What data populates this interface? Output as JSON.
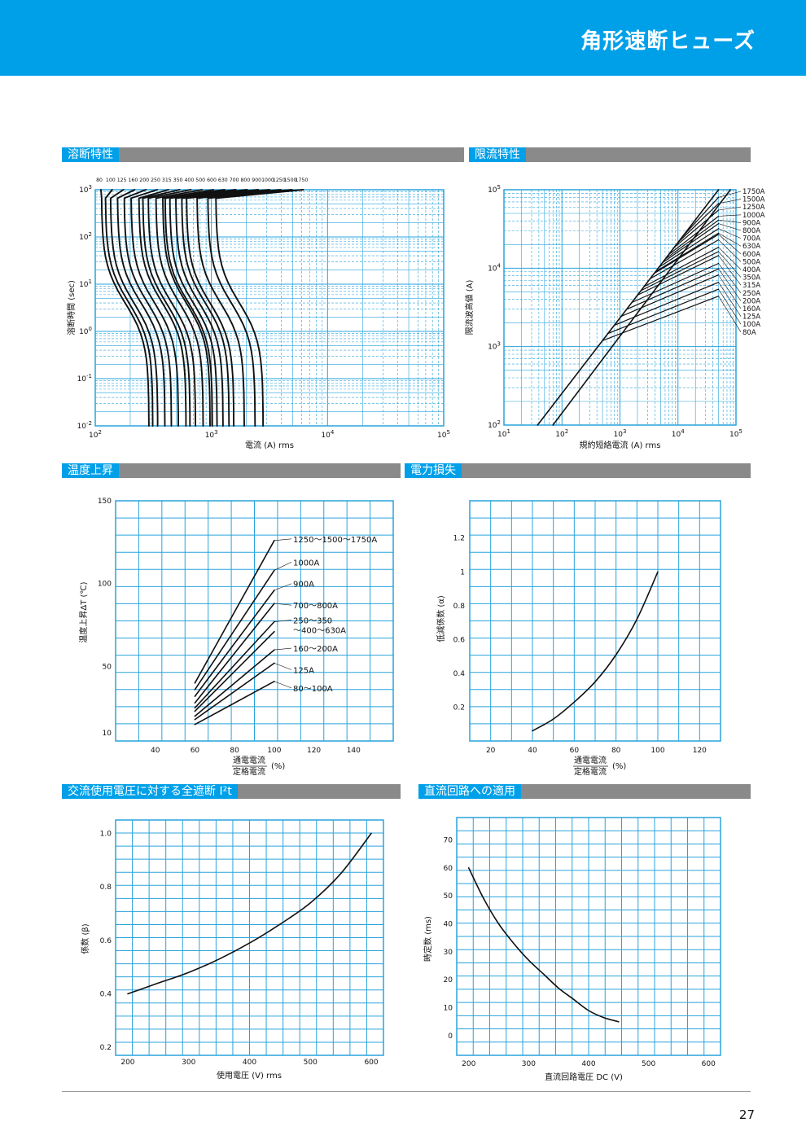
{
  "header": {
    "title": "角形速断ヒューズ"
  },
  "page_number": "27",
  "sections": {
    "melting": "溶断特性",
    "limiting": "限流特性",
    "temperature": "温度上昇",
    "power_loss": "電力損失",
    "i2t": "交流使用電圧に対する全遮断 I²t",
    "dc": "直流回路への適用"
  },
  "colors": {
    "accent": "#00a0e9",
    "grid": "#29a3dc",
    "bar": "#8a8a8a",
    "curve": "#111111"
  },
  "chart_data": [
    {
      "id": "melting",
      "type": "line",
      "xscale": "log",
      "yscale": "log",
      "xlim": [
        100,
        100000
      ],
      "ylim": [
        0.01,
        1000
      ],
      "x_ticks": [
        {
          "v": 100,
          "base": "10",
          "exp": "2"
        },
        {
          "v": 1000,
          "base": "10",
          "exp": "3"
        },
        {
          "v": 10000,
          "base": "10",
          "exp": "4"
        },
        {
          "v": 100000,
          "base": "10",
          "exp": "5"
        }
      ],
      "y_ticks": [
        {
          "v": 0.01,
          "base": "10",
          "exp": "-2"
        },
        {
          "v": 0.1,
          "base": "10",
          "exp": "-1"
        },
        {
          "v": 1,
          "base": "10",
          "exp": "0"
        },
        {
          "v": 10,
          "base": "10",
          "exp": "1"
        },
        {
          "v": 100,
          "base": "10",
          "exp": "2"
        },
        {
          "v": 1000,
          "base": "10",
          "exp": "3"
        }
      ],
      "xlabel": "電流 (A) rms",
      "ylabel": "溶断時間 (sec)",
      "grid": true,
      "ratings": [
        "80",
        "100",
        "125",
        "160",
        "200",
        "250",
        "315",
        "350",
        "400",
        "500",
        "600",
        "630",
        "700",
        "800",
        "900",
        "1000",
        "1250",
        "1500",
        "1750"
      ],
      "curve_bottom_current_A": [
        290,
        313,
        345,
        398,
        453,
        520,
        605,
        655,
        730,
        850,
        975,
        1020,
        1120,
        1260,
        1420,
        1560,
        1920,
        2380,
        2790
      ],
      "curve_top_current_A": [
        113,
        122,
        135,
        155,
        177,
        203,
        237,
        256,
        285,
        332,
        380,
        398,
        437,
        492,
        554,
        609,
        750,
        929,
        1089
      ]
    },
    {
      "id": "limiting",
      "type": "line",
      "xscale": "log",
      "yscale": "log",
      "xlim": [
        10,
        100000
      ],
      "ylim": [
        100,
        100000
      ],
      "x_ticks": [
        {
          "v": 10,
          "base": "10",
          "exp": "1"
        },
        {
          "v": 100,
          "base": "10",
          "exp": "2"
        },
        {
          "v": 1000,
          "base": "10",
          "exp": "3"
        },
        {
          "v": 10000,
          "base": "10",
          "exp": "4"
        },
        {
          "v": 100000,
          "base": "10",
          "exp": "5"
        }
      ],
      "y_ticks": [
        {
          "v": 100,
          "base": "10",
          "exp": "2"
        },
        {
          "v": 1000,
          "base": "10",
          "exp": "3"
        },
        {
          "v": 10000,
          "base": "10",
          "exp": "4"
        },
        {
          "v": 100000,
          "base": "10",
          "exp": "5"
        }
      ],
      "xlabel": "規約短絡電流 (A) rms",
      "ylabel": "限流波高値 (A)",
      "grid": true,
      "series_labels": [
        "1750A",
        "1500A",
        "1250A",
        "1000A",
        "900A",
        "800A",
        "700A",
        "630A",
        "600A",
        "500A",
        "400A",
        "350A",
        "315A",
        "250A",
        "200A",
        "160A",
        "125A",
        "100A",
        "80A"
      ],
      "boundary_lines": [
        {
          "name": "",
          "x": [
            38,
            50000
          ],
          "y": [
            100,
            100000
          ]
        },
        {
          "name": "",
          "x": [
            70,
            80000
          ],
          "y": [
            100,
            100000
          ]
        }
      ],
      "cutoff_start_x": [
        11500,
        10000,
        8600,
        6900,
        6000,
        5400,
        4700,
        4100,
        3900,
        3300,
        2600,
        2300,
        2000,
        1600,
        1300,
        1050,
        800,
        620,
        500
      ],
      "cutoff_end_y": [
        80000,
        67000,
        55000,
        46000,
        41000,
        37000,
        32000,
        28000,
        27000,
        23000,
        18500,
        16300,
        14500,
        11500,
        9800,
        8200,
        6600,
        5400,
        4400
      ]
    },
    {
      "id": "temperature",
      "type": "line",
      "xlim": [
        20,
        160
      ],
      "ylim": [
        5,
        150
      ],
      "x_ticks": [
        40,
        60,
        80,
        100,
        120,
        140
      ],
      "y_ticks": [
        10,
        50,
        100,
        150
      ],
      "xlabel_num": "通電電流",
      "xlabel_den": "定格電流",
      "xlabel_unit": "(%)",
      "ylabel": "温度上昇ΔT (℃)",
      "grid": true,
      "series": [
        {
          "name": "1250～1500～1750A",
          "x": [
            60,
            100
          ],
          "y": [
            40,
            126
          ]
        },
        {
          "name": "1000A",
          "x": [
            60,
            100
          ],
          "y": [
            36,
            108
          ]
        },
        {
          "name": "900A",
          "x": [
            60,
            100
          ],
          "y": [
            32,
            96
          ]
        },
        {
          "name": "700～800A",
          "x": [
            60,
            100
          ],
          "y": [
            28,
            88
          ]
        },
        {
          "name": "",
          "x": [
            60,
            100
          ],
          "y": [
            25,
            77
          ]
        },
        {
          "name": "",
          "x": [
            60,
            100
          ],
          "y": [
            23,
            71
          ]
        },
        {
          "name": "160～200A",
          "x": [
            60,
            100
          ],
          "y": [
            20,
            60
          ]
        },
        {
          "name": "125A",
          "x": [
            60,
            100
          ],
          "y": [
            18,
            52
          ]
        },
        {
          "name": "80～100A",
          "x": [
            60,
            100
          ],
          "y": [
            15,
            41
          ]
        }
      ],
      "annotations": [
        {
          "text": "1250～1500～1750A",
          "value": 127
        },
        {
          "text": "1000A",
          "value": 113
        },
        {
          "text": "900A",
          "value": 100
        },
        {
          "text": "700～800A",
          "value": 87
        },
        {
          "text": "250～350",
          "value": 78
        },
        {
          "text": "～400～630A",
          "value": 72
        },
        {
          "text": "160～200A",
          "value": 61
        },
        {
          "text": "125A",
          "value": 48
        },
        {
          "text": "80～100A",
          "value": 37
        }
      ],
      "leader_targets_y": [
        126,
        108,
        96,
        88,
        77,
        71,
        60,
        52,
        41
      ]
    },
    {
      "id": "power_loss",
      "type": "line",
      "xlim": [
        10,
        130
      ],
      "ylim": [
        0,
        1.42
      ],
      "x_ticks": [
        20,
        40,
        60,
        80,
        100,
        120
      ],
      "y_ticks": [
        0.2,
        0.4,
        0.6,
        0.8,
        1.2
      ],
      "y_tick_one": "1",
      "xlabel_num": "通電電流",
      "xlabel_den": "定格電流",
      "xlabel_unit": "(%)",
      "ylabel": "低減係数 (α)",
      "grid": true,
      "series": [
        {
          "name": "",
          "x": [
            40,
            50,
            60,
            70,
            80,
            90,
            100
          ],
          "y": [
            0.06,
            0.13,
            0.23,
            0.35,
            0.51,
            0.72,
            1.0
          ]
        }
      ]
    },
    {
      "id": "i2t",
      "type": "line",
      "xlim": [
        180,
        620
      ],
      "ylim": [
        0.17,
        1.05
      ],
      "x_ticks": [
        200,
        300,
        400,
        500,
        600
      ],
      "y_ticks": [
        0.2,
        0.4,
        0.6,
        0.8,
        1.0
      ],
      "xlabel": "使用電圧 (V) rms",
      "ylabel": "係数 (β)",
      "grid": true,
      "series": [
        {
          "name": "",
          "x": [
            200,
            250,
            300,
            350,
            400,
            450,
            500,
            550,
            600
          ],
          "y": [
            0.4,
            0.44,
            0.48,
            0.53,
            0.59,
            0.66,
            0.74,
            0.85,
            1.0
          ]
        }
      ]
    },
    {
      "id": "dc",
      "type": "line",
      "xlim": [
        180,
        620
      ],
      "ylim": [
        -7,
        78
      ],
      "x_ticks": [
        200,
        300,
        400,
        500,
        600
      ],
      "y_ticks": [
        0,
        10,
        20,
        30,
        40,
        50,
        60,
        70
      ],
      "xlabel": "直流回路電圧 DC (V)",
      "ylabel": "時定数 (ms)",
      "grid": true,
      "series": [
        {
          "name": "",
          "x": [
            200,
            225,
            250,
            275,
            300,
            325,
            350,
            375,
            400,
            425,
            450
          ],
          "y": [
            60,
            49,
            40,
            33,
            27,
            22,
            17,
            13,
            9,
            6.5,
            5
          ]
        }
      ]
    }
  ]
}
